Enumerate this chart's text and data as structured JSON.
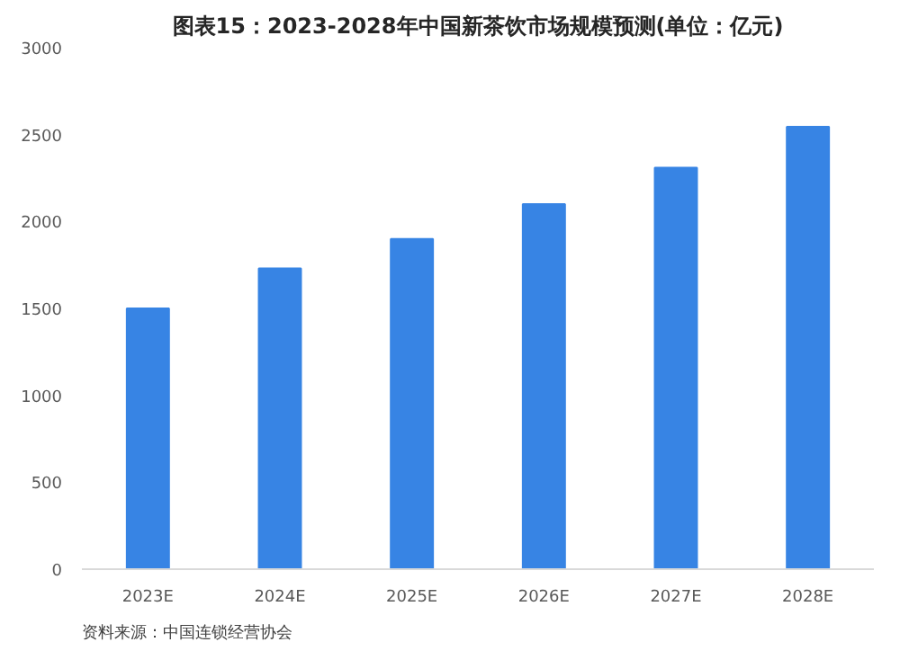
{
  "chart_data": {
    "type": "bar",
    "title": "图表15：2023-2028年中国新茶饮市场规模预测(单位：亿元)",
    "categories": [
      "2023E",
      "2024E",
      "2025E",
      "2026E",
      "2027E",
      "2028E"
    ],
    "values": [
      1500,
      1730,
      1900,
      2100,
      2310,
      2545
    ],
    "color": "#3784e4",
    "ylim": [
      0,
      3000
    ],
    "yticks": [
      0,
      500,
      1000,
      1500,
      2000,
      2500,
      3000
    ],
    "grid": false,
    "annotations": [
      "资料来源：中国连锁经营协会"
    ]
  }
}
